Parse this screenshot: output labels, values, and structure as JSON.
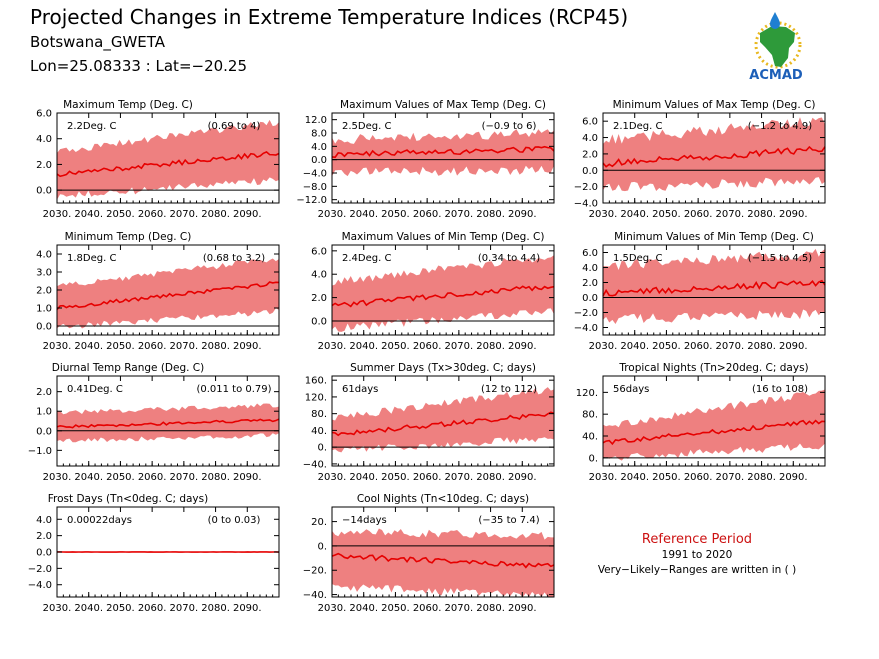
{
  "header": {
    "title": "Projected Changes in Extreme Temperature Indices (RCP45)",
    "station": "Botswana_GWETA",
    "coords": "Lon=25.08333 : Lat=−20.25"
  },
  "logo": {
    "text": "ACMAD",
    "colors": {
      "africa": "#2e9a3a",
      "rays": "#e8b820",
      "drop": "#1f7fd1",
      "text": "#1d5fb8"
    }
  },
  "reference": {
    "title": "Reference Period",
    "years": "1991 to 2020",
    "note": "Very−Likely−Ranges are written in ( )"
  },
  "colors": {
    "band": "#ee8080",
    "line": "#e60000",
    "zero": "#000000"
  },
  "chart_data": [
    {
      "type": "area",
      "title": "Maximum Temp (Deg. C)",
      "value_label": "2.2Deg. C",
      "range_label": "(0.69 to 4)",
      "ylim": [
        -1.0,
        6.0
      ],
      "yticks": [
        6.0,
        4.0,
        2.0,
        0.0
      ],
      "ytick_labels": [
        "6.0",
        "4.0",
        "2.0",
        "0.0"
      ],
      "xlim": [
        2030,
        2100
      ],
      "xticks": [
        2030,
        2040,
        2050,
        2060,
        2070,
        2080,
        2090
      ],
      "xtick_labels": [
        "2030.",
        "2040.",
        "2050.",
        "2060.",
        "2070.",
        "2080.",
        "2090."
      ],
      "series": {
        "median_start": 1.2,
        "median_end": 2.9,
        "low_start": -0.2,
        "low_end": 1.1,
        "high_start": 2.7,
        "high_end": 5.0,
        "noise": 0.6
      }
    },
    {
      "type": "area",
      "title": "Maximum Values of Max Temp (Deg. C)",
      "value_label": "2.5Deg. C",
      "range_label": "(−0.9 to 6)",
      "ylim": [
        -13.0,
        14.0
      ],
      "yticks": [
        12.0,
        8.0,
        4.0,
        0.0,
        -4.0,
        -8.0,
        -12.0
      ],
      "ytick_labels": [
        "12.0",
        "8.0",
        "4.0",
        "0.0",
        "−4.0",
        "−8.0",
        "−12.0"
      ],
      "xlim": [
        2030,
        2100
      ],
      "xticks": [
        2030,
        2040,
        2050,
        2060,
        2070,
        2080,
        2090
      ],
      "xtick_labels": [
        "2030.",
        "2040.",
        "2050.",
        "2060.",
        "2070.",
        "2080.",
        "2090."
      ],
      "series": {
        "median_start": 1.5,
        "median_end": 3.3,
        "low_start": -2.5,
        "low_end": -1.5,
        "high_start": 4.5,
        "high_end": 6.5,
        "noise": 3.0
      }
    },
    {
      "type": "area",
      "title": "Minimum Values of Max Temp (Deg. C)",
      "value_label": "2.1Deg. C",
      "range_label": "(−1.2 to 4.9)",
      "ylim": [
        -4.0,
        7.0
      ],
      "yticks": [
        6.0,
        4.0,
        2.0,
        0.0,
        -2.0,
        -4.0
      ],
      "ytick_labels": [
        "6.0",
        "4.0",
        "2.0",
        "0.0",
        "−2.0",
        "−4.0"
      ],
      "xlim": [
        2030,
        2100
      ],
      "xticks": [
        2030,
        2040,
        2050,
        2060,
        2070,
        2080,
        2090
      ],
      "xtick_labels": [
        "2030.",
        "2040.",
        "2050.",
        "2060.",
        "2070.",
        "2080.",
        "2090."
      ],
      "series": {
        "median_start": 0.8,
        "median_end": 2.6,
        "low_start": -1.5,
        "low_end": -0.5,
        "high_start": 3.0,
        "high_end": 5.5,
        "noise": 1.3
      }
    },
    {
      "type": "area",
      "title": "Minimum Temp (Deg. C)",
      "value_label": "1.8Deg. C",
      "range_label": "(0.68 to 3.2)",
      "ylim": [
        -0.5,
        4.5
      ],
      "yticks": [
        4.0,
        3.0,
        2.0,
        1.0,
        0.0
      ],
      "ytick_labels": [
        "4.0",
        "3.0",
        "2.0",
        "1.0",
        "0.0"
      ],
      "xlim": [
        2030,
        2100
      ],
      "xticks": [
        2030,
        2040,
        2050,
        2060,
        2070,
        2080,
        2090
      ],
      "xtick_labels": [
        "2030.",
        "2040.",
        "2050.",
        "2060.",
        "2070.",
        "2080.",
        "2090."
      ],
      "series": {
        "median_start": 1.0,
        "median_end": 2.4,
        "low_start": 0.1,
        "low_end": 1.0,
        "high_start": 2.0,
        "high_end": 3.6,
        "noise": 0.35
      }
    },
    {
      "type": "area",
      "title": "Maximum Values of Min Temp (Deg. C)",
      "value_label": "2.4Deg. C",
      "range_label": "(0.34 to 4.4)",
      "ylim": [
        -1.2,
        6.5
      ],
      "yticks": [
        6.0,
        4.0,
        2.0,
        0.0
      ],
      "ytick_labels": [
        "6.0",
        "4.0",
        "2.0",
        "0.0"
      ],
      "xlim": [
        2030,
        2100
      ],
      "xticks": [
        2030,
        2040,
        2050,
        2060,
        2070,
        2080,
        2090
      ],
      "xtick_labels": [
        "2030.",
        "2040.",
        "2050.",
        "2060.",
        "2070.",
        "2080.",
        "2090."
      ],
      "series": {
        "median_start": 1.3,
        "median_end": 3.0,
        "low_start": -0.3,
        "low_end": 1.2,
        "high_start": 3.0,
        "high_end": 5.2,
        "noise": 0.7
      }
    },
    {
      "type": "area",
      "title": "Minimum Values of Min Temp (Deg. C)",
      "value_label": "1.5Deg. C",
      "range_label": "(−1.5 to 4.5)",
      "ylim": [
        -5.0,
        7.0
      ],
      "yticks": [
        6.0,
        4.0,
        2.0,
        0.0,
        -2.0,
        -4.0
      ],
      "ytick_labels": [
        "6.0",
        "4.0",
        "2.0",
        "0.0",
        "−2.0",
        "−4.0"
      ],
      "xlim": [
        2030,
        2100
      ],
      "xticks": [
        2030,
        2040,
        2050,
        2060,
        2070,
        2080,
        2090
      ],
      "xtick_labels": [
        "2030.",
        "2040.",
        "2050.",
        "2060.",
        "2070.",
        "2080.",
        "2090."
      ],
      "series": {
        "median_start": 0.6,
        "median_end": 2.0,
        "low_start": -2.2,
        "low_end": -1.5,
        "high_start": 3.5,
        "high_end": 5.2,
        "noise": 1.4
      }
    },
    {
      "type": "area",
      "title": "Diurnal Temp Range (Deg. C)",
      "value_label": "0.41Deg. C",
      "range_label": "(0.011 to 0.79)",
      "ylim": [
        -1.8,
        2.8
      ],
      "yticks": [
        2.0,
        1.0,
        0.0,
        -1.0
      ],
      "ytick_labels": [
        "2.0",
        "1.0",
        "0.0",
        "−1.0"
      ],
      "xlim": [
        2030,
        2100
      ],
      "xticks": [
        2030,
        2040,
        2050,
        2060,
        2070,
        2080,
        2090
      ],
      "xtick_labels": [
        "2030.",
        "2040.",
        "2050.",
        "2060.",
        "2070.",
        "2080.",
        "2090."
      ],
      "series": {
        "median_start": 0.2,
        "median_end": 0.55,
        "low_start": -0.4,
        "low_end": -0.1,
        "high_start": 0.8,
        "high_end": 1.2,
        "noise": 0.25
      }
    },
    {
      "type": "area",
      "title": "Summer Days (Tx>30deg. C; days)",
      "value_label": "61days",
      "range_label": "(12 to 112)",
      "ylim": [
        -45,
        170
      ],
      "yticks": [
        160,
        120,
        80,
        40,
        0,
        -40
      ],
      "ytick_labels": [
        "160.",
        "120.",
        "80.",
        "40.",
        "0.",
        "−40."
      ],
      "xlim": [
        2030,
        2100
      ],
      "xticks": [
        2030,
        2040,
        2050,
        2060,
        2070,
        2080,
        2090
      ],
      "xtick_labels": [
        "2030.",
        "2040.",
        "2050.",
        "2060.",
        "2070.",
        "2080.",
        "2090."
      ],
      "series": {
        "median_start": 30,
        "median_end": 80,
        "low_start": 0,
        "low_end": 30,
        "high_start": 60,
        "high_end": 130,
        "noise": 18
      }
    },
    {
      "type": "area",
      "title": "Tropical Nights (Tn>20deg. C; days)",
      "value_label": "56days",
      "range_label": "(16 to 108)",
      "ylim": [
        -15,
        150
      ],
      "yticks": [
        120,
        80,
        40,
        0
      ],
      "ytick_labels": [
        "120.",
        "80.",
        "40.",
        "0."
      ],
      "xlim": [
        2030,
        2100
      ],
      "xticks": [
        2030,
        2040,
        2050,
        2060,
        2070,
        2080,
        2090
      ],
      "xtick_labels": [
        "2030.",
        "2040.",
        "2050.",
        "2060.",
        "2070.",
        "2080.",
        "2090."
      ],
      "series": {
        "median_start": 28,
        "median_end": 68,
        "low_start": 5,
        "low_end": 30,
        "high_start": 50,
        "high_end": 115,
        "noise": 14
      }
    },
    {
      "type": "area",
      "title": "Frost Days (Tn<0deg. C; days)",
      "value_label": "0.00022days",
      "range_label": "(0 to 0.03)",
      "ylim": [
        -5.5,
        5.5
      ],
      "yticks": [
        4.0,
        2.0,
        0.0,
        -2.0,
        -4.0
      ],
      "ytick_labels": [
        "4.0",
        "2.0",
        "0.0",
        "−2.0",
        "−4.0"
      ],
      "xlim": [
        2030,
        2100
      ],
      "xticks": [
        2030,
        2040,
        2050,
        2060,
        2070,
        2080,
        2090
      ],
      "xtick_labels": [
        "2030.",
        "2040.",
        "2050.",
        "2060.",
        "2070.",
        "2080.",
        "2090."
      ],
      "series": {
        "median_start": 0.0,
        "median_end": 0.0,
        "low_start": 0.0,
        "low_end": 0.0,
        "high_start": 0.03,
        "high_end": 0.03,
        "noise": 0.02
      }
    },
    {
      "type": "area",
      "title": "Cool Nights (Tn<10deg. C; days)",
      "value_label": "−14days",
      "range_label": "(−35 to 7.4)",
      "ylim": [
        -42,
        32
      ],
      "yticks": [
        20,
        0,
        -20,
        -40
      ],
      "ytick_labels": [
        "20.",
        "0.",
        "−20.",
        "−40."
      ],
      "xlim": [
        2030,
        2100
      ],
      "xticks": [
        2030,
        2040,
        2050,
        2060,
        2070,
        2080,
        2090
      ],
      "xtick_labels": [
        "2030.",
        "2040.",
        "2050.",
        "2060.",
        "2070.",
        "2080.",
        "2090."
      ],
      "series": {
        "median_start": -8,
        "median_end": -17,
        "low_start": -30,
        "low_end": -38,
        "high_start": 8,
        "high_end": 5,
        "noise": 7
      }
    }
  ]
}
